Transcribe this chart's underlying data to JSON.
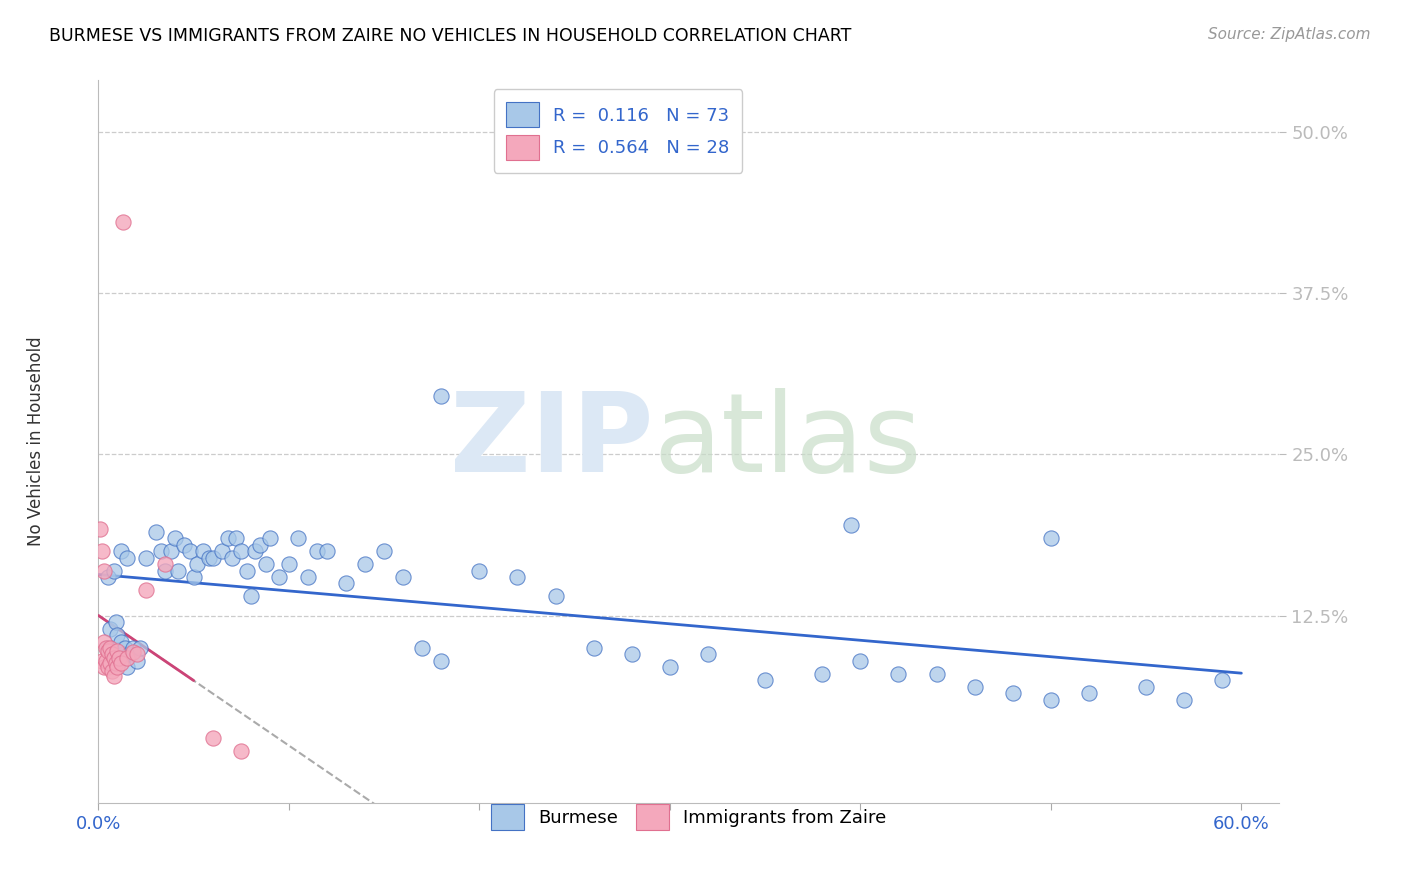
{
  "title": "BURMESE VS IMMIGRANTS FROM ZAIRE NO VEHICLES IN HOUSEHOLD CORRELATION CHART",
  "source": "Source: ZipAtlas.com",
  "ylabel": "No Vehicles in Household",
  "ytick_vals": [
    0.125,
    0.25,
    0.375,
    0.5
  ],
  "ytick_labels": [
    "12.5%",
    "25.0%",
    "37.5%",
    "50.0%"
  ],
  "xtick_vals": [
    0.0,
    0.6
  ],
  "xtick_labels": [
    "0.0%",
    "60.0%"
  ],
  "legend_label1": "Burmese",
  "legend_label2": "Immigrants from Zaire",
  "legend_R1": "R =  0.116",
  "legend_N1": "N = 73",
  "legend_R2": "R =  0.564",
  "legend_N2": "N = 28",
  "burmese_color": "#a8c8e8",
  "zaire_color": "#f4a8bc",
  "burmese_edge_color": "#4472c4",
  "zaire_edge_color": "#e07090",
  "burmese_line_color": "#3366cc",
  "zaire_line_color": "#cc4477",
  "xlim": [
    0.0,
    0.62
  ],
  "ylim": [
    -0.02,
    0.54
  ]
}
